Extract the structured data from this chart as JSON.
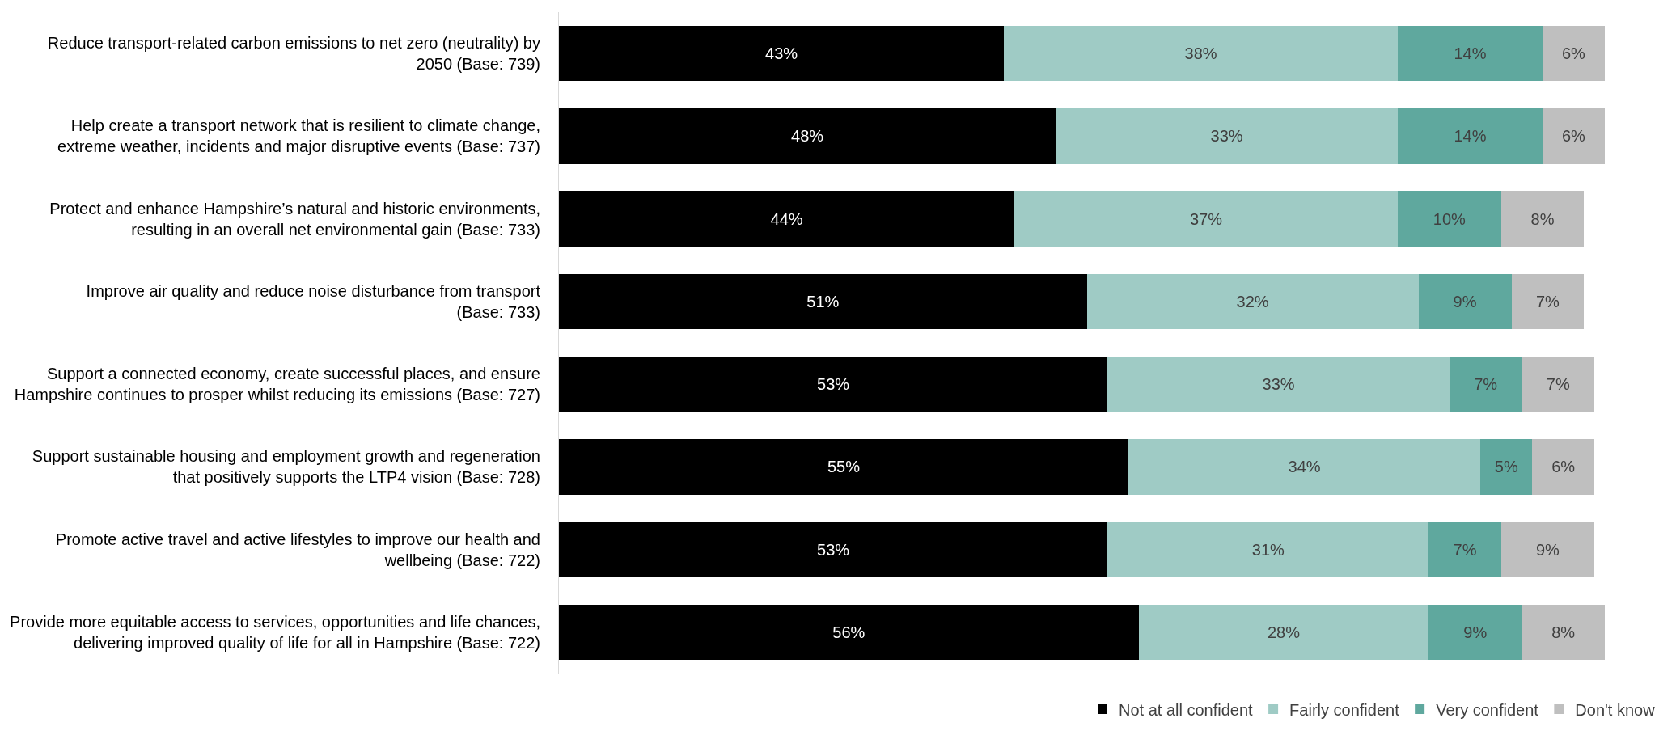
{
  "chart_data": {
    "type": "bar",
    "orientation": "horizontal",
    "stacked": true,
    "legend": "bottom right",
    "categories": [
      "Reduce transport-related carbon emissions to net zero (neutrality) by\n2050 (Base: 739)",
      "Help create a transport network that is resilient to climate change,\nextreme weather, incidents and major disruptive events (Base: 737)",
      "Protect and enhance Hampshire’s natural and historic environments,\nresulting in an overall net environmental gain (Base: 733)",
      "Improve air quality and reduce noise disturbance from transport\n(Base: 733)",
      "Support a connected economy, create successful places, and ensure\nHampshire continues to prosper whilst reducing its emissions (Base: 727)",
      "Support sustainable housing and employment growth and regeneration\nthat positively supports the LTP4 vision (Base: 728)",
      "Promote active travel and active lifestyles to improve our health and\nwellbeing (Base: 722)",
      "Provide more equitable access to services, opportunities and life chances,\ndelivering improved quality of life for all in Hampshire (Base: 722)"
    ],
    "series": [
      {
        "name": "Not at all confident",
        "color": "#000000",
        "values": [
          43,
          48,
          44,
          51,
          53,
          55,
          53,
          56
        ],
        "value_labels": [
          "43%",
          "48%",
          "44%",
          "51%",
          "53%",
          "55%",
          "53%",
          "56%"
        ]
      },
      {
        "name": "Fairly confident",
        "color": "#9fcbc5",
        "values": [
          38,
          33,
          37,
          32,
          33,
          34,
          31,
          28
        ],
        "value_labels": [
          "38%",
          "33%",
          "37%",
          "32%",
          "33%",
          "34%",
          "31%",
          "28%"
        ]
      },
      {
        "name": "Very confident",
        "color": "#5fa89e",
        "values": [
          14,
          14,
          10,
          9,
          7,
          5,
          7,
          9
        ],
        "value_labels": [
          "14%",
          "14%",
          "10%",
          "9%",
          "7%",
          "5%",
          "7%",
          "9%"
        ]
      },
      {
        "name": "Don't know",
        "color": "#bfbfbf",
        "values": [
          6,
          6,
          8,
          7,
          7,
          6,
          9,
          8
        ],
        "value_labels": [
          "6%",
          "6%",
          "8%",
          "7%",
          "7%",
          "6%",
          "9%",
          "8%"
        ]
      }
    ]
  }
}
